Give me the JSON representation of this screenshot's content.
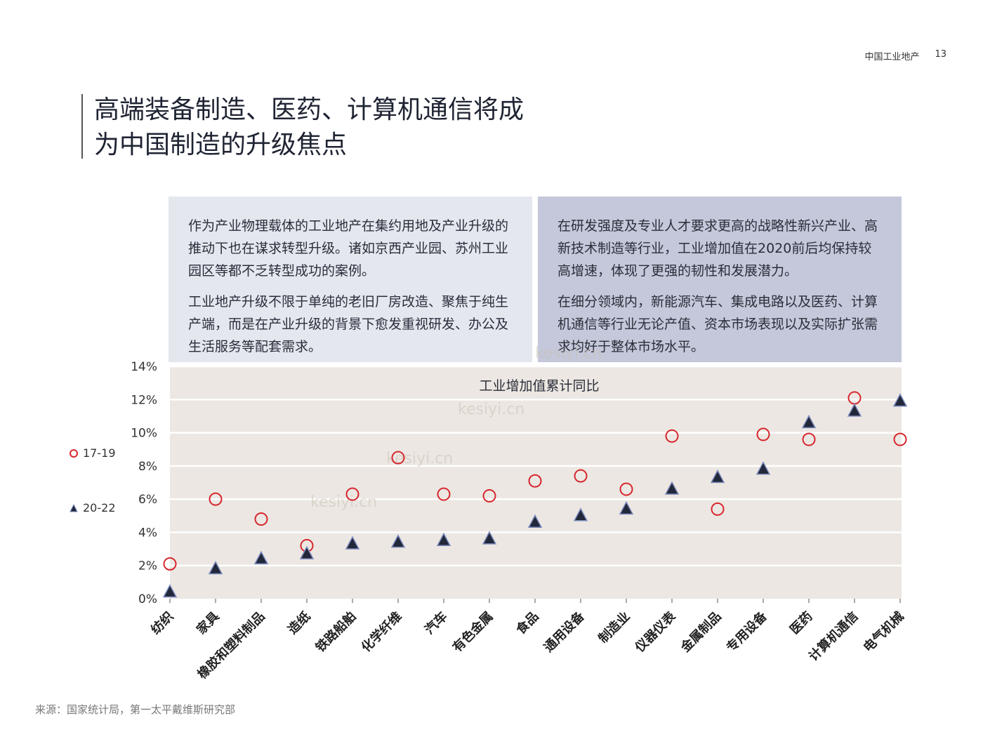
{
  "header": {
    "section": "中国工业地产",
    "page_number": "13"
  },
  "title": {
    "line1": "高端装备制造、医药、计算机通信将成",
    "line2": "为中国制造的升级焦点"
  },
  "box_left": {
    "p1": "作为产业物理载体的工业地产在集约用地及产业升级的推动下也在谋求转型升级。诸如京西产业园、苏州工业园区等都不乏转型成功的案例。",
    "p2": "工业地产升级不限于单纯的老旧厂房改造、聚焦于纯生产端，而是在产业升级的背景下愈发重视研发、办公及生活服务等配套需求。"
  },
  "box_right": {
    "p1": "在研发强度及专业人才要求更高的战略性新兴产业、高新技术制造等行业，工业增加值在2020前后均保持较高增速，体现了更强的韧性和发展潜力。",
    "p2": "在细分领域内，新能源汽车、集成电路以及医药、计算机通信等行业无论产值、资本市场表现以及实际扩张需求均好于整体市场水平。"
  },
  "source": "来源：国家统计局，第一太平戴维斯研究部",
  "watermark": "kesiyi.cn",
  "colors": {
    "circle": "#d7262e",
    "triangle_fill": "#22283a",
    "triangle_stroke": "#7e8cc0",
    "plot_bg": "#ece7e2",
    "grid": "#ffffff"
  },
  "chart_data": {
    "type": "scatter",
    "title": "工业增加值累计同比",
    "categories": [
      "纺织",
      "家具",
      "橡胶和塑料制品",
      "造纸",
      "铁路船舶",
      "化学纤维",
      "汽车",
      "有色金属",
      "食品",
      "通用设备",
      "制造业",
      "仪器仪表",
      "金属制品",
      "专用设备",
      "医药",
      "计算机通信",
      "电气机械"
    ],
    "y_ticks": [
      "0%",
      "2%",
      "4%",
      "6%",
      "8%",
      "10%",
      "12%",
      "14%"
    ],
    "ylim": [
      0,
      14
    ],
    "grid": true,
    "legend_position": "left",
    "series": [
      {
        "name": "17-19",
        "marker": "circle",
        "values": [
          2.1,
          6.0,
          4.8,
          3.2,
          6.3,
          8.5,
          6.3,
          6.2,
          7.1,
          7.4,
          6.6,
          9.8,
          5.4,
          9.9,
          9.6,
          12.1,
          9.6
        ]
      },
      {
        "name": "20-22",
        "marker": "triangle",
        "values": [
          0.4,
          1.8,
          2.4,
          2.7,
          3.3,
          3.4,
          3.5,
          3.6,
          4.6,
          5.0,
          5.4,
          6.6,
          7.3,
          7.8,
          10.6,
          11.3,
          11.9
        ]
      }
    ]
  }
}
